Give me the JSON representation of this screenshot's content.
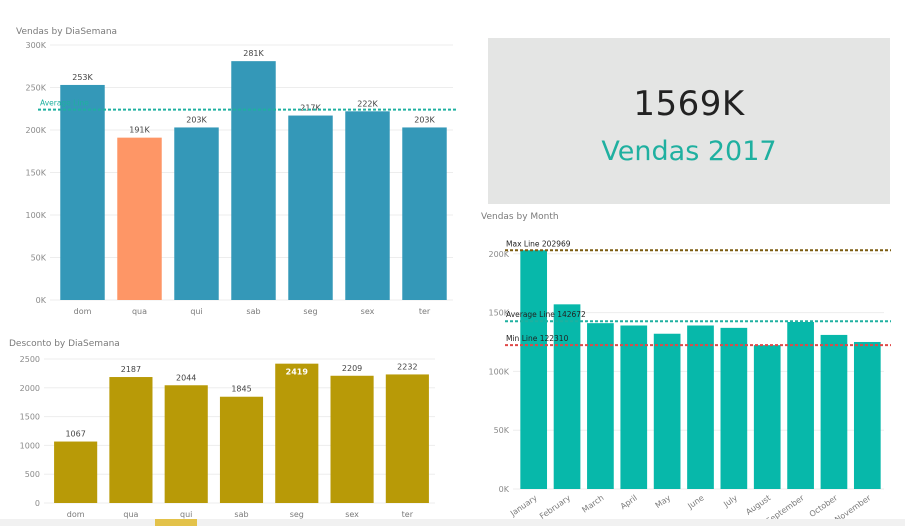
{
  "chart_data": [
    {
      "id": "weekday-sales",
      "type": "bar",
      "title": "Vendas by DiaSemana",
      "categories": [
        "dom",
        "qua",
        "qui",
        "sab",
        "seg",
        "sex",
        "ter"
      ],
      "values": [
        253000,
        191000,
        203000,
        281000,
        217000,
        222000,
        203000
      ],
      "value_labels": [
        "253K",
        "191K",
        "203K",
        "281K",
        "217K",
        "222K",
        "203K"
      ],
      "highlight_index": 1,
      "colors": {
        "bar": "#3498b8",
        "highlight": "#fe9666",
        "average_line": "#1fb0a0"
      },
      "ylim": [
        0,
        300000
      ],
      "yticks": [
        0,
        50000,
        100000,
        150000,
        200000,
        250000,
        300000
      ],
      "ytick_labels": [
        "0K",
        "50K",
        "100K",
        "150K",
        "200K",
        "250K",
        "300K"
      ],
      "reference_lines": [
        {
          "label": "Average Line",
          "value": 224000
        }
      ],
      "grid": true
    },
    {
      "id": "weekday-discount",
      "type": "bar",
      "title": "Desconto by DiaSemana",
      "categories": [
        "dom",
        "qua",
        "qui",
        "sab",
        "seg",
        "sex",
        "ter"
      ],
      "values": [
        1067,
        2187,
        2044,
        1845,
        2419,
        2209,
        2232
      ],
      "value_labels": [
        "1067",
        "2187",
        "2044",
        "1845",
        "2419",
        "2209",
        "2232"
      ],
      "colors": {
        "bar": "#b89a07",
        "label_inside_color": "#ffffff"
      },
      "ylim": [
        0,
        2500
      ],
      "yticks": [
        0,
        500,
        1000,
        1500,
        2000,
        2500
      ],
      "ytick_labels": [
        "0",
        "500",
        "1000",
        "1500",
        "2000",
        "2500"
      ],
      "grid": true
    },
    {
      "id": "monthly-sales",
      "type": "bar",
      "title": "Vendas by Month",
      "categories": [
        "January",
        "February",
        "March",
        "April",
        "May",
        "June",
        "July",
        "August",
        "September",
        "October",
        "November"
      ],
      "values": [
        202969,
        157000,
        141000,
        139000,
        132000,
        139000,
        137000,
        122310,
        142000,
        131000,
        125000
      ],
      "colors": {
        "bar": "#07b8aa",
        "max_line": "#7b5c10",
        "average_line": "#1fb0a0",
        "min_line": "#e04848"
      },
      "ylim": [
        0,
        210000
      ],
      "yticks": [
        0,
        50000,
        100000,
        150000,
        200000
      ],
      "ytick_labels": [
        "0K",
        "50K",
        "100K",
        "150K",
        "200K"
      ],
      "reference_lines": [
        {
          "label": "Max Line 202969",
          "value": 202969,
          "kind": "max"
        },
        {
          "label": "Average Line 142672",
          "value": 142672,
          "kind": "average"
        },
        {
          "label": "Min Line 122310",
          "value": 122310,
          "kind": "min"
        }
      ],
      "grid": true
    }
  ],
  "kpi_card": {
    "value": "1569K",
    "label": "Vendas 2017"
  }
}
